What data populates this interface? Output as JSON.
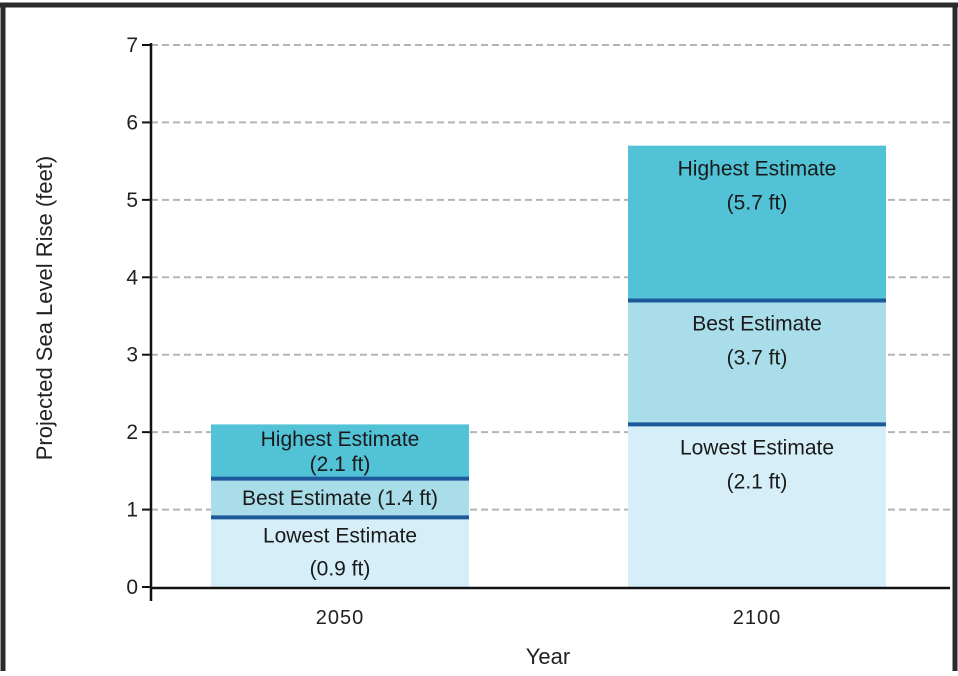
{
  "chart_data": {
    "type": "bar",
    "stacked": true,
    "categories": [
      "2050",
      "2100"
    ],
    "xlabel": "Year",
    "ylabel": "Projected Sea Level Rise (feet)",
    "ylim": [
      0,
      7
    ],
    "yticks": [
      "0",
      "1",
      "2",
      "3",
      "4",
      "5",
      "6",
      "7"
    ],
    "grid": "horizontal-dashed",
    "bars": [
      {
        "category": "2050",
        "segments": [
          {
            "kind": "lowest",
            "value": 0.9,
            "lines": [
              "Lowest Estimate",
              "(0.9 ft)"
            ]
          },
          {
            "kind": "best",
            "value": 1.4,
            "lines": [
              "Best Estimate (1.4 ft)"
            ]
          },
          {
            "kind": "highest",
            "value": 2.1,
            "lines": [
              "Highest Estimate",
              "(2.1 ft)"
            ]
          }
        ]
      },
      {
        "category": "2100",
        "segments": [
          {
            "kind": "lowest",
            "value": 2.1,
            "lines": [
              "Lowest Estimate",
              "(2.1 ft)"
            ]
          },
          {
            "kind": "best",
            "value": 3.7,
            "lines": [
              "Best Estimate",
              "(3.7 ft)"
            ]
          },
          {
            "kind": "highest",
            "value": 5.7,
            "lines": [
              "Highest Estimate",
              "(5.7 ft)"
            ]
          }
        ]
      }
    ],
    "colors": {
      "lowest": "#d5eef7",
      "best": "#a9dde9",
      "highest": "#52c3d6",
      "divider": "#1d5a9c",
      "grid": "#b5b5b5",
      "axis": "#111111",
      "frame": "#2b2b2b"
    }
  }
}
